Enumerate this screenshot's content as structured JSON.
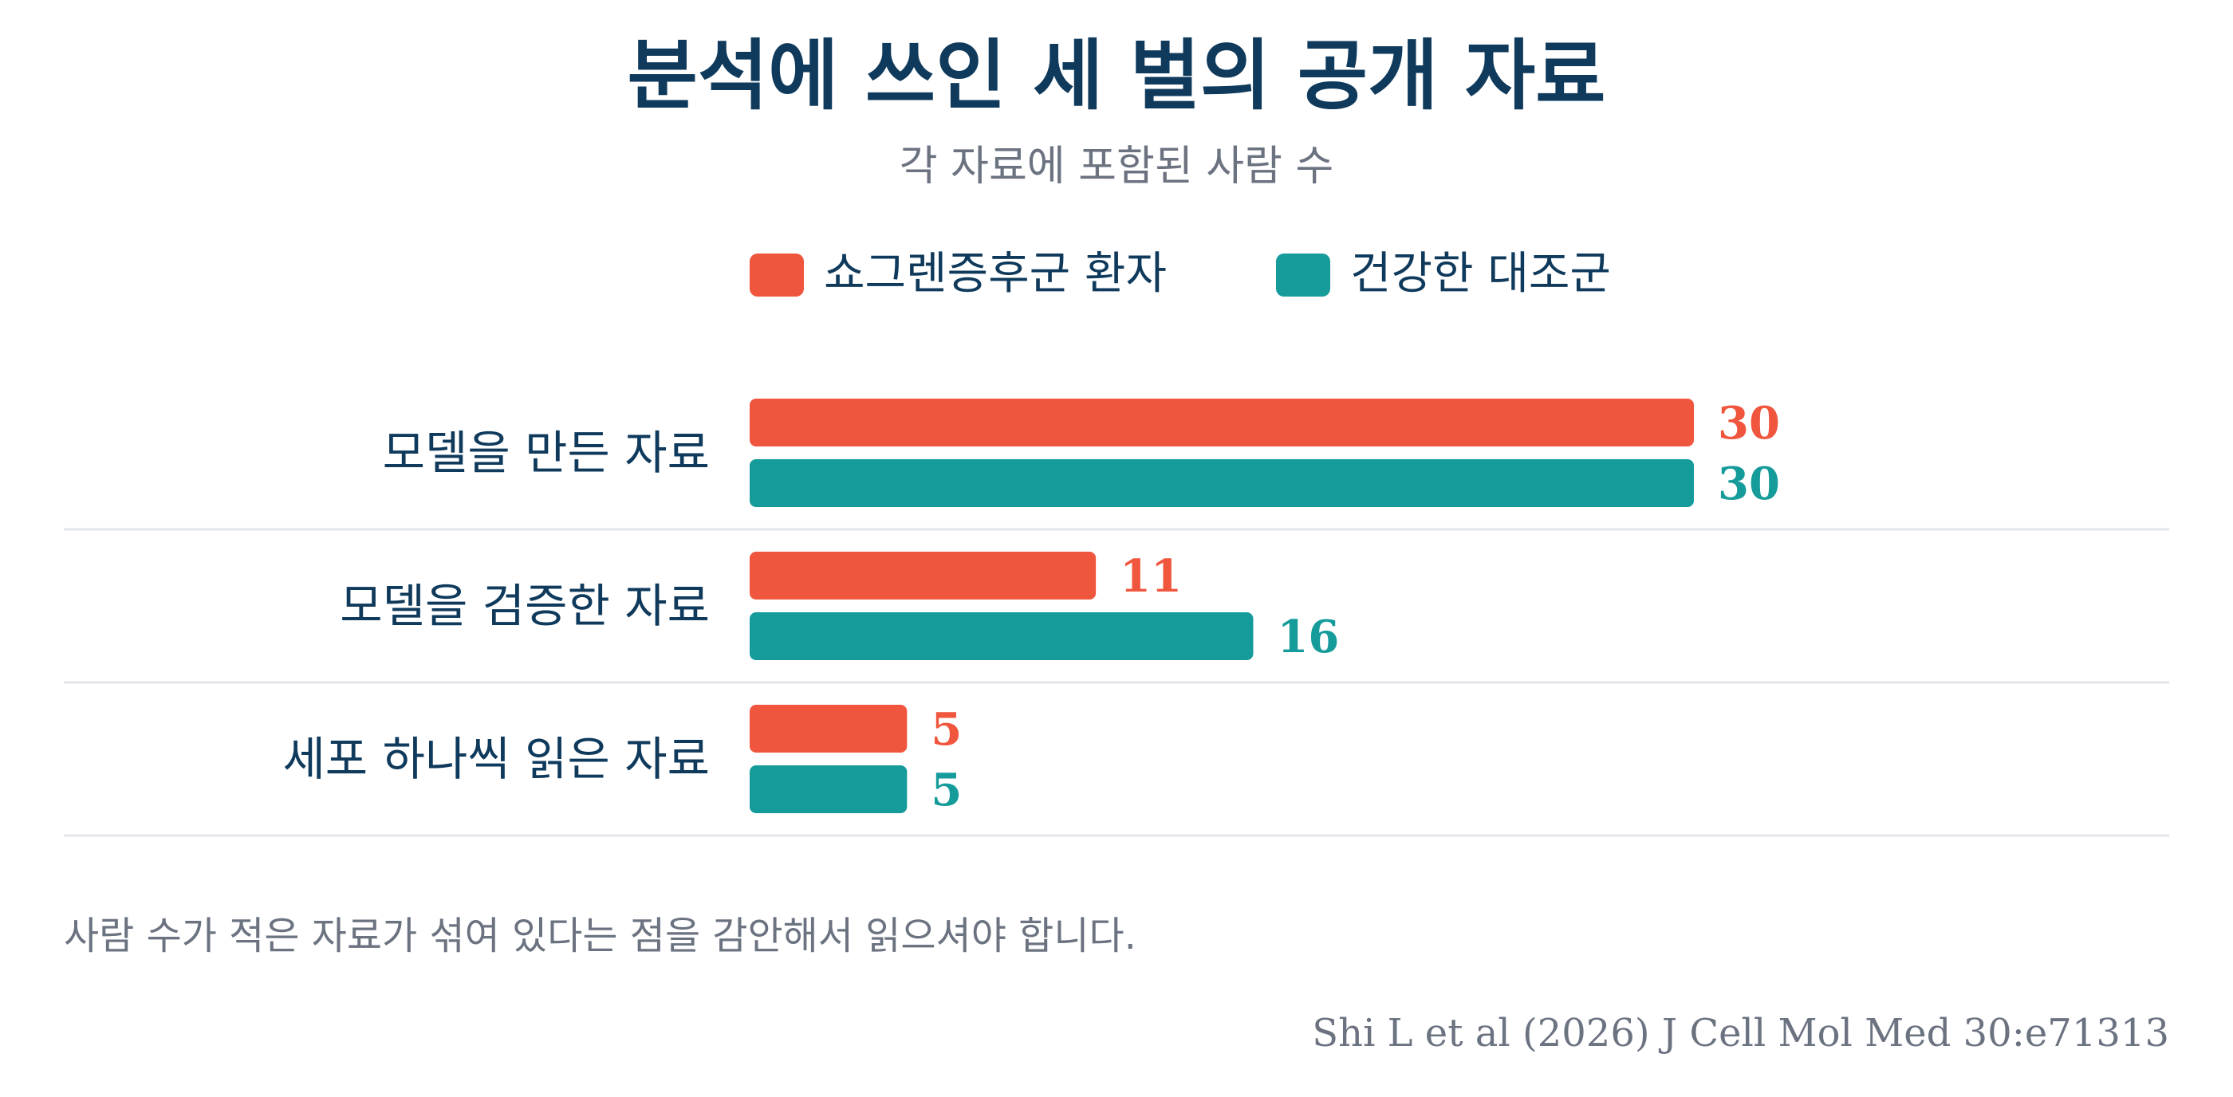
{
  "colors": {
    "patients": "#f0553d",
    "controls": "#169b9b",
    "title": "#0f3a5c",
    "muted": "#6b7280",
    "separator": "#e2e5e9"
  },
  "chart_data": {
    "type": "bar",
    "orientation": "horizontal",
    "title": "분석에 쓰인 세 벌의 공개 자료",
    "subtitle": "각 자료에 포함된 사람 수",
    "categories": [
      "모델을 만든 자료",
      "모델을 검증한 자료",
      "세포 하나씩 읽은 자료"
    ],
    "series": [
      {
        "name": "쇼그렌증후군 환자",
        "values": [
          30,
          11,
          5
        ],
        "color": "#f0553d"
      },
      {
        "name": "건강한 대조군",
        "values": [
          30,
          16,
          5
        ],
        "color": "#169b9b"
      }
    ],
    "xlim": [
      0,
      30
    ],
    "grid": false,
    "legend_position": "top",
    "data_labels": true
  },
  "note": "사람 수가 적은 자료가 섞여 있다는 점을 감안해서 읽으셔야 합니다.",
  "source": "Shi L et al (2026) J Cell Mol Med 30:e71313"
}
